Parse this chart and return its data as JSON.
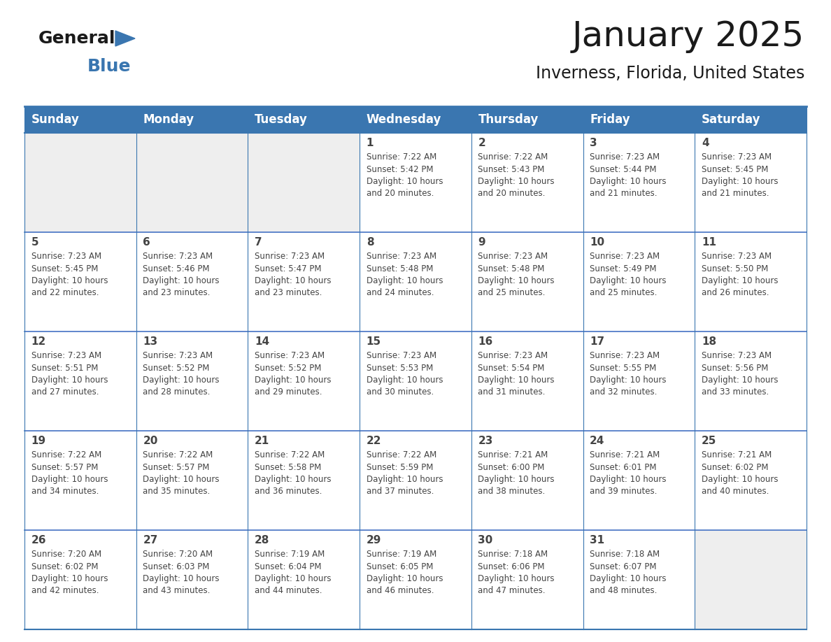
{
  "title": "January 2025",
  "subtitle": "Inverness, Florida, United States",
  "header_color": "#3a76b0",
  "header_text_color": "#FFFFFF",
  "cell_bg_color": "#FFFFFF",
  "alt_cell_bg_color": "#EEEEEE",
  "border_color": "#3a76b0",
  "row_separator_color": "#4472C4",
  "text_color": "#444444",
  "days_of_week": [
    "Sunday",
    "Monday",
    "Tuesday",
    "Wednesday",
    "Thursday",
    "Friday",
    "Saturday"
  ],
  "calendar_data": [
    [
      {
        "day": "",
        "info": "",
        "empty": true
      },
      {
        "day": "",
        "info": "",
        "empty": true
      },
      {
        "day": "",
        "info": "",
        "empty": true
      },
      {
        "day": "1",
        "info": "Sunrise: 7:22 AM\nSunset: 5:42 PM\nDaylight: 10 hours\nand 20 minutes.",
        "empty": false
      },
      {
        "day": "2",
        "info": "Sunrise: 7:22 AM\nSunset: 5:43 PM\nDaylight: 10 hours\nand 20 minutes.",
        "empty": false
      },
      {
        "day": "3",
        "info": "Sunrise: 7:23 AM\nSunset: 5:44 PM\nDaylight: 10 hours\nand 21 minutes.",
        "empty": false
      },
      {
        "day": "4",
        "info": "Sunrise: 7:23 AM\nSunset: 5:45 PM\nDaylight: 10 hours\nand 21 minutes.",
        "empty": false
      }
    ],
    [
      {
        "day": "5",
        "info": "Sunrise: 7:23 AM\nSunset: 5:45 PM\nDaylight: 10 hours\nand 22 minutes.",
        "empty": false
      },
      {
        "day": "6",
        "info": "Sunrise: 7:23 AM\nSunset: 5:46 PM\nDaylight: 10 hours\nand 23 minutes.",
        "empty": false
      },
      {
        "day": "7",
        "info": "Sunrise: 7:23 AM\nSunset: 5:47 PM\nDaylight: 10 hours\nand 23 minutes.",
        "empty": false
      },
      {
        "day": "8",
        "info": "Sunrise: 7:23 AM\nSunset: 5:48 PM\nDaylight: 10 hours\nand 24 minutes.",
        "empty": false
      },
      {
        "day": "9",
        "info": "Sunrise: 7:23 AM\nSunset: 5:48 PM\nDaylight: 10 hours\nand 25 minutes.",
        "empty": false
      },
      {
        "day": "10",
        "info": "Sunrise: 7:23 AM\nSunset: 5:49 PM\nDaylight: 10 hours\nand 25 minutes.",
        "empty": false
      },
      {
        "day": "11",
        "info": "Sunrise: 7:23 AM\nSunset: 5:50 PM\nDaylight: 10 hours\nand 26 minutes.",
        "empty": false
      }
    ],
    [
      {
        "day": "12",
        "info": "Sunrise: 7:23 AM\nSunset: 5:51 PM\nDaylight: 10 hours\nand 27 minutes.",
        "empty": false
      },
      {
        "day": "13",
        "info": "Sunrise: 7:23 AM\nSunset: 5:52 PM\nDaylight: 10 hours\nand 28 minutes.",
        "empty": false
      },
      {
        "day": "14",
        "info": "Sunrise: 7:23 AM\nSunset: 5:52 PM\nDaylight: 10 hours\nand 29 minutes.",
        "empty": false
      },
      {
        "day": "15",
        "info": "Sunrise: 7:23 AM\nSunset: 5:53 PM\nDaylight: 10 hours\nand 30 minutes.",
        "empty": false
      },
      {
        "day": "16",
        "info": "Sunrise: 7:23 AM\nSunset: 5:54 PM\nDaylight: 10 hours\nand 31 minutes.",
        "empty": false
      },
      {
        "day": "17",
        "info": "Sunrise: 7:23 AM\nSunset: 5:55 PM\nDaylight: 10 hours\nand 32 minutes.",
        "empty": false
      },
      {
        "day": "18",
        "info": "Sunrise: 7:23 AM\nSunset: 5:56 PM\nDaylight: 10 hours\nand 33 minutes.",
        "empty": false
      }
    ],
    [
      {
        "day": "19",
        "info": "Sunrise: 7:22 AM\nSunset: 5:57 PM\nDaylight: 10 hours\nand 34 minutes.",
        "empty": false
      },
      {
        "day": "20",
        "info": "Sunrise: 7:22 AM\nSunset: 5:57 PM\nDaylight: 10 hours\nand 35 minutes.",
        "empty": false
      },
      {
        "day": "21",
        "info": "Sunrise: 7:22 AM\nSunset: 5:58 PM\nDaylight: 10 hours\nand 36 minutes.",
        "empty": false
      },
      {
        "day": "22",
        "info": "Sunrise: 7:22 AM\nSunset: 5:59 PM\nDaylight: 10 hours\nand 37 minutes.",
        "empty": false
      },
      {
        "day": "23",
        "info": "Sunrise: 7:21 AM\nSunset: 6:00 PM\nDaylight: 10 hours\nand 38 minutes.",
        "empty": false
      },
      {
        "day": "24",
        "info": "Sunrise: 7:21 AM\nSunset: 6:01 PM\nDaylight: 10 hours\nand 39 minutes.",
        "empty": false
      },
      {
        "day": "25",
        "info": "Sunrise: 7:21 AM\nSunset: 6:02 PM\nDaylight: 10 hours\nand 40 minutes.",
        "empty": false
      }
    ],
    [
      {
        "day": "26",
        "info": "Sunrise: 7:20 AM\nSunset: 6:02 PM\nDaylight: 10 hours\nand 42 minutes.",
        "empty": false
      },
      {
        "day": "27",
        "info": "Sunrise: 7:20 AM\nSunset: 6:03 PM\nDaylight: 10 hours\nand 43 minutes.",
        "empty": false
      },
      {
        "day": "28",
        "info": "Sunrise: 7:19 AM\nSunset: 6:04 PM\nDaylight: 10 hours\nand 44 minutes.",
        "empty": false
      },
      {
        "day": "29",
        "info": "Sunrise: 7:19 AM\nSunset: 6:05 PM\nDaylight: 10 hours\nand 46 minutes.",
        "empty": false
      },
      {
        "day": "30",
        "info": "Sunrise: 7:18 AM\nSunset: 6:06 PM\nDaylight: 10 hours\nand 47 minutes.",
        "empty": false
      },
      {
        "day": "31",
        "info": "Sunrise: 7:18 AM\nSunset: 6:07 PM\nDaylight: 10 hours\nand 48 minutes.",
        "empty": false
      },
      {
        "day": "",
        "info": "",
        "empty": true
      }
    ]
  ],
  "logo_text_general": "General",
  "logo_text_blue": "Blue",
  "logo_color_general": "#1a1a1a",
  "logo_color_blue": "#3a76b0",
  "logo_triangle_color": "#3a76b0",
  "title_fontsize": 36,
  "subtitle_fontsize": 17,
  "header_fontsize": 12,
  "day_num_fontsize": 11,
  "info_fontsize": 8.5
}
